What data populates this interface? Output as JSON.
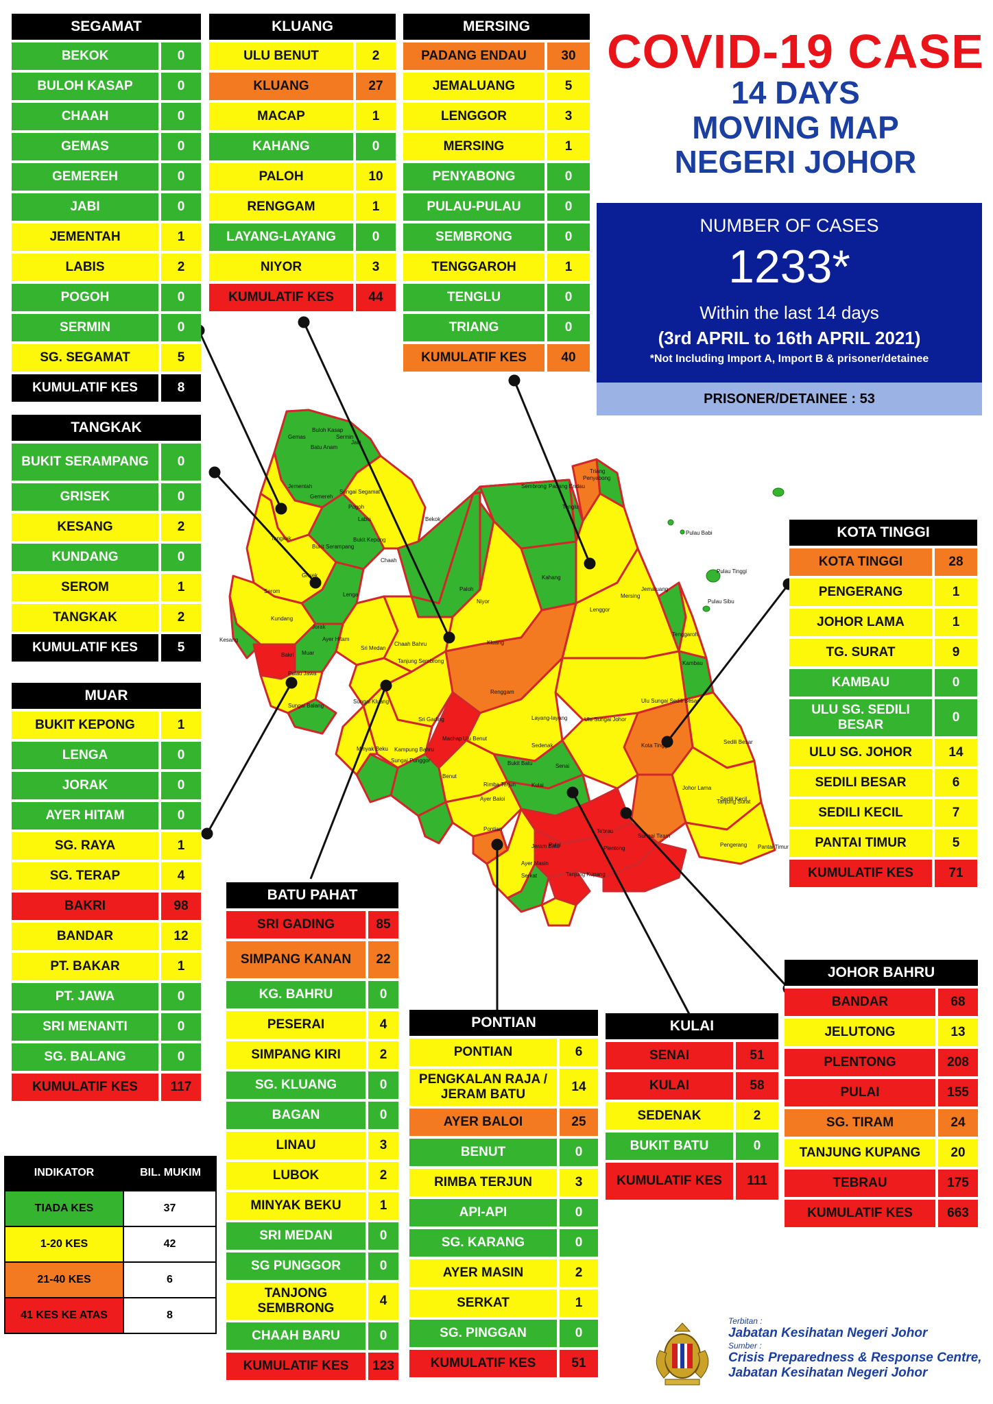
{
  "title": {
    "main": "COVID-19 CASE",
    "line1": "14 DAYS",
    "line2": "MOVING MAP",
    "line3": "NEGERI JOHOR"
  },
  "summary": {
    "label": "NUMBER OF CASES",
    "total": "1233*",
    "window": "Within the last 14 days",
    "dates": "(3rd APRIL to 16th APRIL 2021)",
    "note": "*Not Including Import A, Import B & prisoner/detainee",
    "prisoner": "PRISONER/DETAINEE : 53"
  },
  "districts": [
    {
      "key": "segamat",
      "name": "SEGAMAT",
      "rows": [
        {
          "n": "BEKOK",
          "v": "0",
          "c": "g"
        },
        {
          "n": "BULOH KASAP",
          "v": "0",
          "c": "g"
        },
        {
          "n": "CHAAH",
          "v": "0",
          "c": "g"
        },
        {
          "n": "GEMAS",
          "v": "0",
          "c": "g"
        },
        {
          "n": "GEMEREH",
          "v": "0",
          "c": "g"
        },
        {
          "n": "JABI",
          "v": "0",
          "c": "g"
        },
        {
          "n": "JEMENTAH",
          "v": "1",
          "c": "y"
        },
        {
          "n": "LABIS",
          "v": "2",
          "c": "y"
        },
        {
          "n": "POGOH",
          "v": "0",
          "c": "g"
        },
        {
          "n": "SERMIN",
          "v": "0",
          "c": "g"
        },
        {
          "n": "SG. SEGAMAT",
          "v": "5",
          "c": "y"
        },
        {
          "n": "KUMULATIF KES",
          "v": "8",
          "c": "k"
        }
      ]
    },
    {
      "key": "kluang",
      "name": "KLUANG",
      "rows": [
        {
          "n": "ULU BENUT",
          "v": "2",
          "c": "y"
        },
        {
          "n": "KLUANG",
          "v": "27",
          "c": "o"
        },
        {
          "n": "MACAP",
          "v": "1",
          "c": "y"
        },
        {
          "n": "KAHANG",
          "v": "0",
          "c": "g"
        },
        {
          "n": "PALOH",
          "v": "10",
          "c": "y"
        },
        {
          "n": "RENGGAM",
          "v": "1",
          "c": "y"
        },
        {
          "n": "LAYANG-LAYANG",
          "v": "0",
          "c": "g"
        },
        {
          "n": "NIYOR",
          "v": "3",
          "c": "y"
        },
        {
          "n": "KUMULATIF KES",
          "v": "44",
          "c": "r"
        }
      ]
    },
    {
      "key": "mersing",
      "name": "MERSING",
      "rows": [
        {
          "n": "PADANG ENDAU",
          "v": "30",
          "c": "o"
        },
        {
          "n": "JEMALUANG",
          "v": "5",
          "c": "y"
        },
        {
          "n": "LENGGOR",
          "v": "3",
          "c": "y"
        },
        {
          "n": "MERSING",
          "v": "1",
          "c": "y"
        },
        {
          "n": "PENYABONG",
          "v": "0",
          "c": "g"
        },
        {
          "n": "PULAU-PULAU",
          "v": "0",
          "c": "g"
        },
        {
          "n": "SEMBRONG",
          "v": "0",
          "c": "g"
        },
        {
          "n": "TENGGAROH",
          "v": "1",
          "c": "y"
        },
        {
          "n": "TENGLU",
          "v": "0",
          "c": "g"
        },
        {
          "n": "TRIANG",
          "v": "0",
          "c": "g"
        },
        {
          "n": "KUMULATIF KES",
          "v": "40",
          "c": "o"
        }
      ]
    },
    {
      "key": "tangkak",
      "name": "TANGKAK",
      "rows": [
        {
          "n": "BUKIT SERAMPANG",
          "v": "0",
          "c": "g",
          "tall": true
        },
        {
          "n": "GRISEK",
          "v": "0",
          "c": "g"
        },
        {
          "n": "KESANG",
          "v": "2",
          "c": "y"
        },
        {
          "n": "KUNDANG",
          "v": "0",
          "c": "g"
        },
        {
          "n": "SEROM",
          "v": "1",
          "c": "y"
        },
        {
          "n": "TANGKAK",
          "v": "2",
          "c": "y"
        },
        {
          "n": "KUMULATIF KES",
          "v": "5",
          "c": "k"
        }
      ]
    },
    {
      "key": "muar",
      "name": "MUAR",
      "rows": [
        {
          "n": "BUKIT KEPONG",
          "v": "1",
          "c": "y"
        },
        {
          "n": "LENGA",
          "v": "0",
          "c": "g"
        },
        {
          "n": "JORAK",
          "v": "0",
          "c": "g"
        },
        {
          "n": "AYER HITAM",
          "v": "0",
          "c": "g"
        },
        {
          "n": "SG. RAYA",
          "v": "1",
          "c": "y"
        },
        {
          "n": "SG. TERAP",
          "v": "4",
          "c": "y"
        },
        {
          "n": "BAKRI",
          "v": "98",
          "c": "r"
        },
        {
          "n": "BANDAR",
          "v": "12",
          "c": "y"
        },
        {
          "n": "PT. BAKAR",
          "v": "1",
          "c": "y"
        },
        {
          "n": "PT. JAWA",
          "v": "0",
          "c": "g"
        },
        {
          "n": "SRI MENANTI",
          "v": "0",
          "c": "g"
        },
        {
          "n": "SG. BALANG",
          "v": "0",
          "c": "g"
        },
        {
          "n": "KUMULATIF KES",
          "v": "117",
          "c": "r"
        }
      ]
    },
    {
      "key": "kotatinggi",
      "name": "KOTA TINGGI",
      "rows": [
        {
          "n": "KOTA TINGGI",
          "v": "28",
          "c": "o"
        },
        {
          "n": "PENGERANG",
          "v": "1",
          "c": "y"
        },
        {
          "n": "JOHOR LAMA",
          "v": "1",
          "c": "y"
        },
        {
          "n": "TG. SURAT",
          "v": "9",
          "c": "y"
        },
        {
          "n": "KAMBAU",
          "v": "0",
          "c": "g"
        },
        {
          "n": "ULU SG. SEDILI BESAR",
          "v": "0",
          "c": "g",
          "tall": true
        },
        {
          "n": "ULU  SG. JOHOR",
          "v": "14",
          "c": "y"
        },
        {
          "n": "SEDILI BESAR",
          "v": "6",
          "c": "y"
        },
        {
          "n": "SEDILI KECIL",
          "v": "7",
          "c": "y"
        },
        {
          "n": "PANTAI TIMUR",
          "v": "5",
          "c": "y"
        },
        {
          "n": "KUMULATIF KES",
          "v": "71",
          "c": "r"
        }
      ]
    },
    {
      "key": "batupahat",
      "name": "BATU PAHAT",
      "rows": [
        {
          "n": "SRI GADING",
          "v": "85",
          "c": "r"
        },
        {
          "n": "SIMPANG KANAN",
          "v": "22",
          "c": "o",
          "tall": true
        },
        {
          "n": "KG. BAHRU",
          "v": "0",
          "c": "g"
        },
        {
          "n": "PESERAI",
          "v": "4",
          "c": "y"
        },
        {
          "n": "SIMPANG KIRI",
          "v": "2",
          "c": "y"
        },
        {
          "n": "SG. KLUANG",
          "v": "0",
          "c": "g"
        },
        {
          "n": "BAGAN",
          "v": "0",
          "c": "g"
        },
        {
          "n": "LINAU",
          "v": "3",
          "c": "y"
        },
        {
          "n": "LUBOK",
          "v": "2",
          "c": "y"
        },
        {
          "n": "MINYAK BEKU",
          "v": "1",
          "c": "y"
        },
        {
          "n": "SRI MEDAN",
          "v": "0",
          "c": "g"
        },
        {
          "n": "SG PUNGGOR",
          "v": "0",
          "c": "g"
        },
        {
          "n": "TANJONG SEMBRONG",
          "v": "4",
          "c": "y",
          "tall": true
        },
        {
          "n": "CHAAH BARU",
          "v": "0",
          "c": "g"
        },
        {
          "n": "KUMULATIF KES",
          "v": "123",
          "c": "r"
        }
      ]
    },
    {
      "key": "pontian",
      "name": "PONTIAN",
      "rows": [
        {
          "n": "PONTIAN",
          "v": "6",
          "c": "y"
        },
        {
          "n": "PENGKALAN RAJA / JERAM BATU",
          "v": "14",
          "c": "y",
          "tall": true
        },
        {
          "n": "AYER BALOI",
          "v": "25",
          "c": "o"
        },
        {
          "n": "BENUT",
          "v": "0",
          "c": "g"
        },
        {
          "n": "RIMBA TERJUN",
          "v": "3",
          "c": "y"
        },
        {
          "n": "API-API",
          "v": "0",
          "c": "g"
        },
        {
          "n": "SG. KARANG",
          "v": "0",
          "c": "g"
        },
        {
          "n": "AYER MASIN",
          "v": "2",
          "c": "y"
        },
        {
          "n": "SERKAT",
          "v": "1",
          "c": "y"
        },
        {
          "n": "SG. PINGGAN",
          "v": "0",
          "c": "g"
        },
        {
          "n": "KUMULATIF KES",
          "v": "51",
          "c": "r"
        }
      ]
    },
    {
      "key": "kulai",
      "name": "KULAI",
      "rows": [
        {
          "n": "SENAI",
          "v": "51",
          "c": "r"
        },
        {
          "n": "KULAI",
          "v": "58",
          "c": "r"
        },
        {
          "n": "SEDENAK",
          "v": "2",
          "c": "y"
        },
        {
          "n": "BUKIT BATU",
          "v": "0",
          "c": "g"
        },
        {
          "n": "KUMULATIF KES",
          "v": "111",
          "c": "r",
          "tall": true
        }
      ]
    },
    {
      "key": "johorbahru",
      "name": "JOHOR BAHRU",
      "rows": [
        {
          "n": "BANDAR",
          "v": "68",
          "c": "r"
        },
        {
          "n": "JELUTONG",
          "v": "13",
          "c": "y"
        },
        {
          "n": "PLENTONG",
          "v": "208",
          "c": "r"
        },
        {
          "n": "PULAI",
          "v": "155",
          "c": "r"
        },
        {
          "n": "SG. TIRAM",
          "v": "24",
          "c": "o"
        },
        {
          "n": "TANJUNG KUPANG",
          "v": "20",
          "c": "y"
        },
        {
          "n": "TEBRAU",
          "v": "175",
          "c": "r"
        },
        {
          "n": "KUMULATIF KES",
          "v": "663",
          "c": "r"
        }
      ]
    }
  ],
  "legend": {
    "head": [
      "INDIKATOR",
      "BIL. MUKIM"
    ],
    "rows": [
      {
        "label": "TIADA KES",
        "count": "37",
        "color": "#35b52f"
      },
      {
        "label": "1-20 KES",
        "count": "42",
        "color": "#fdf80a"
      },
      {
        "label": "21-40 KES",
        "count": "6",
        "color": "#f37a20"
      },
      {
        "label": "41 KES KE ATAS",
        "count": "8",
        "color": "#ee1c1c"
      }
    ]
  },
  "map_labels": [
    "Gemas",
    "Buloh Kasap",
    "Sermin",
    "Jabi",
    "Batu Anam",
    "Jementah",
    "Gemereh",
    "Sungai Segamat",
    "Pogoh",
    "Labis",
    "Chaah",
    "Bekok",
    "Tangkak",
    "Bukit Serampang",
    "Bukit Kepong",
    "Grisek",
    "Lenga",
    "Serom",
    "Kundang",
    "Sembrong",
    "Tenglu",
    "Padang Endau",
    "Penyabong",
    "Triang",
    "Jemaluang",
    "Pulau Babi",
    "Pulau Tinggi",
    "Pulau Sibu",
    "Paloh",
    "Niyor",
    "Kahang",
    "Lenggor",
    "Mersing",
    "Kluang",
    "Jorak",
    "Sri Medan",
    "Ayer Hitam",
    "Chaah Bahru",
    "Tanjung Sembrong",
    "Renggam",
    "Layang-layang",
    "Ulu Sungai Johor",
    "Ulu Sungai Sedili Besar",
    "Kambau",
    "Tenggaroh",
    "Sri Gading",
    "Machap",
    "Ulu Benut",
    "Sedenak",
    "Kota Tinggi",
    "Sedili Besar",
    "Sedili Kecil",
    "Bukit Batu",
    "Senai",
    "Kulai",
    "Johor Lama",
    "Tanjung Surat",
    "Pontian",
    "Pulai",
    "Tebrau",
    "Plentong",
    "Sungai Tiram",
    "Pengerang",
    "Pantai Timur",
    "Kesang",
    "Bakri",
    "Muar",
    "Sungai Balang",
    "Minyak Beku",
    "Kampung Bahru",
    "Sungai Punggor",
    "Benut",
    "Ayer Baloi",
    "Rimba Terjun",
    "Jeram Batu",
    "Ayer Masin",
    "Serkat",
    "Tanjung Kupang",
    "Sungai Kluang",
    "Pulau Jawa"
  ],
  "footer": {
    "terbitan_label": "Terbitan :",
    "terbitan": "Jabatan Kesihatan Negeri Johor",
    "sumber_label": "Sumber :",
    "sumber1": "Crisis Preparedness & Response Centre,",
    "sumber2": "Jabatan Kesihatan Negeri Johor"
  }
}
